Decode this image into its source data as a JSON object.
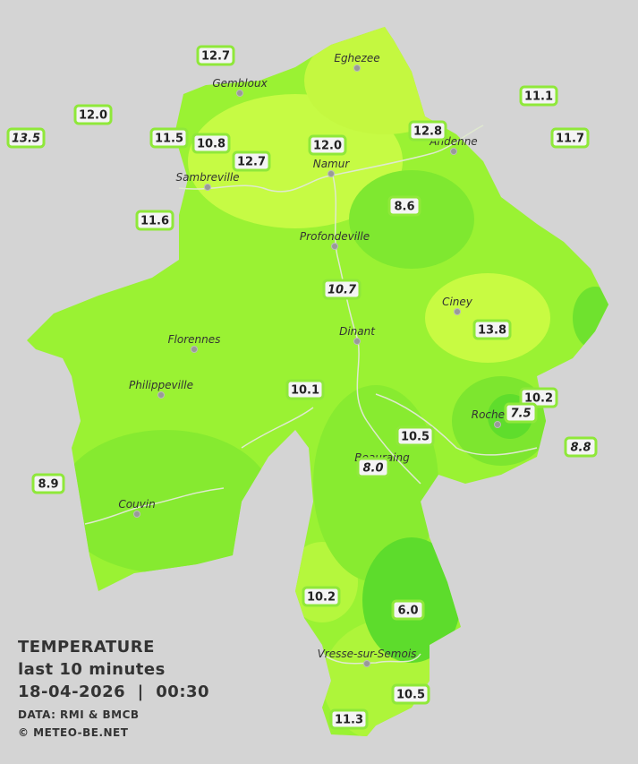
{
  "legend": {
    "title": "TEMPERATURE",
    "subtitle": "last 10 minutes",
    "datetime": "18-04-2026  |  00:30",
    "source": "DATA: RMI & BMCB",
    "credit": "© METEO-BE.NET"
  },
  "cities": [
    {
      "name": "Eghezee"
    },
    {
      "name": "Gembloux"
    },
    {
      "name": "Andenne"
    },
    {
      "name": "Namur"
    },
    {
      "name": "Sambreville"
    },
    {
      "name": "Profondeville"
    },
    {
      "name": "Ciney"
    },
    {
      "name": "Florennes"
    },
    {
      "name": "Dinant"
    },
    {
      "name": "Philippeville"
    },
    {
      "name": "Rochefort"
    },
    {
      "name": "Beauraing"
    },
    {
      "name": "Couvin"
    },
    {
      "name": "Vresse-sur-Semois"
    }
  ],
  "stations": [
    {
      "label": "12.7",
      "italic": false
    },
    {
      "label": "12.0",
      "italic": false
    },
    {
      "label": "13.5",
      "italic": true
    },
    {
      "label": "11.5",
      "italic": false
    },
    {
      "label": "10.8",
      "italic": false
    },
    {
      "label": "12.7",
      "italic": false
    },
    {
      "label": "12.0",
      "italic": false
    },
    {
      "label": "12.8",
      "italic": false
    },
    {
      "label": "11.1",
      "italic": false
    },
    {
      "label": "11.7",
      "italic": false
    },
    {
      "label": "11.6",
      "italic": false
    },
    {
      "label": "8.6",
      "italic": false
    },
    {
      "label": "10.7",
      "italic": true
    },
    {
      "label": "13.8",
      "italic": false
    },
    {
      "label": "10.1",
      "italic": false
    },
    {
      "label": "10.2",
      "italic": false
    },
    {
      "label": "7.5",
      "italic": true
    },
    {
      "label": "10.5",
      "italic": false
    },
    {
      "label": "8.8",
      "italic": true
    },
    {
      "label": "8.0",
      "italic": true
    },
    {
      "label": "8.9",
      "italic": false
    },
    {
      "label": "10.2",
      "italic": false
    },
    {
      "label": "6.0",
      "italic": false
    },
    {
      "label": "10.5",
      "italic": false
    },
    {
      "label": "11.3",
      "italic": false
    }
  ]
}
